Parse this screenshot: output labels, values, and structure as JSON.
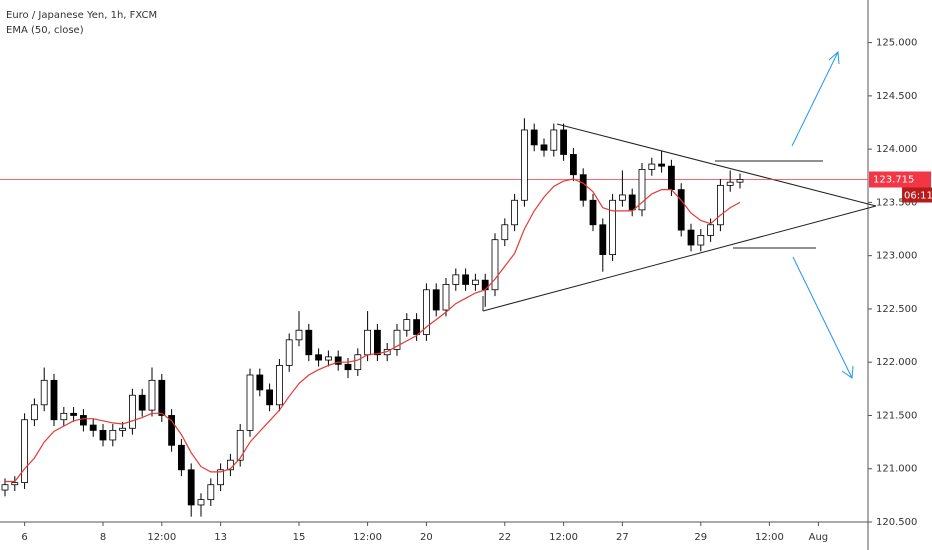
{
  "chart_data": {
    "type": "candlestick",
    "title": "Euro / Japanese Yen, 1h, FXCM",
    "categories": [
      null,
      null,
      "6",
      null,
      null,
      null,
      null,
      null,
      null,
      null,
      "8",
      null,
      null,
      null,
      null,
      null,
      "12:00",
      null,
      null,
      null,
      null,
      null,
      "13",
      null,
      null,
      null,
      null,
      null,
      null,
      null,
      "15",
      null,
      null,
      null,
      null,
      null,
      null,
      "12:00",
      null,
      null,
      null,
      null,
      null,
      "20",
      null,
      null,
      null,
      null,
      null,
      null,
      null,
      "22",
      null,
      null,
      null,
      null,
      null,
      "12:00",
      null,
      null,
      null,
      null,
      null,
      "27",
      null,
      null,
      null,
      null,
      null,
      null,
      null,
      "29",
      null,
      null,
      null,
      null,
      null,
      null,
      "12:00",
      null,
      null,
      null,
      null,
      "Aug"
    ],
    "candles": [
      [
        120.8,
        120.91,
        120.74,
        120.85
      ],
      [
        120.85,
        120.93,
        120.79,
        120.87
      ],
      [
        120.87,
        121.52,
        120.81,
        121.46
      ],
      [
        121.46,
        121.66,
        121.4,
        121.6
      ],
      [
        121.6,
        121.95,
        121.54,
        121.83
      ],
      [
        121.83,
        121.89,
        121.4,
        121.46
      ],
      [
        121.46,
        121.58,
        121.4,
        121.52
      ],
      [
        121.52,
        121.58,
        121.44,
        121.5
      ],
      [
        121.5,
        121.56,
        121.35,
        121.41
      ],
      [
        121.41,
        121.47,
        121.3,
        121.36
      ],
      [
        121.36,
        121.42,
        121.21,
        121.27
      ],
      [
        121.27,
        121.42,
        121.21,
        121.36
      ],
      [
        121.36,
        121.44,
        121.3,
        121.38
      ],
      [
        121.38,
        121.75,
        121.32,
        121.69
      ],
      [
        121.69,
        121.75,
        121.49,
        121.55
      ],
      [
        121.55,
        121.95,
        121.49,
        121.83
      ],
      [
        121.83,
        121.89,
        121.44,
        121.5
      ],
      [
        121.5,
        121.56,
        121.16,
        121.22
      ],
      [
        121.22,
        121.28,
        120.93,
        120.99
      ],
      [
        120.99,
        121.05,
        120.55,
        120.66
      ],
      [
        120.66,
        120.77,
        120.55,
        120.71
      ],
      [
        120.71,
        120.91,
        120.65,
        120.85
      ],
      [
        120.85,
        121.05,
        120.79,
        120.99
      ],
      [
        120.99,
        121.14,
        120.93,
        121.08
      ],
      [
        121.08,
        121.42,
        121.02,
        121.36
      ],
      [
        121.36,
        121.94,
        121.3,
        121.88
      ],
      [
        121.88,
        121.94,
        121.68,
        121.74
      ],
      [
        121.74,
        121.8,
        121.54,
        121.6
      ],
      [
        121.6,
        122.03,
        121.54,
        121.97
      ],
      [
        121.97,
        122.27,
        121.91,
        122.21
      ],
      [
        122.21,
        122.48,
        122.15,
        122.3
      ],
      [
        122.3,
        122.36,
        122.01,
        122.07
      ],
      [
        122.07,
        122.13,
        121.96,
        122.02
      ],
      [
        122.02,
        122.11,
        121.96,
        122.05
      ],
      [
        122.05,
        122.11,
        121.92,
        121.98
      ],
      [
        121.98,
        122.04,
        121.85,
        121.93
      ],
      [
        121.93,
        122.13,
        121.87,
        122.07
      ],
      [
        122.07,
        122.48,
        122.01,
        122.3
      ],
      [
        122.3,
        122.36,
        122.01,
        122.07
      ],
      [
        122.07,
        122.18,
        122.01,
        122.12
      ],
      [
        122.12,
        122.36,
        122.06,
        122.3
      ],
      [
        122.3,
        122.46,
        122.24,
        122.4
      ],
      [
        122.4,
        122.46,
        122.2,
        122.26
      ],
      [
        122.26,
        122.74,
        122.2,
        122.68
      ],
      [
        122.68,
        122.74,
        122.43,
        122.49
      ],
      [
        122.49,
        122.79,
        122.43,
        122.73
      ],
      [
        122.73,
        122.88,
        122.67,
        122.82
      ],
      [
        122.82,
        122.88,
        122.67,
        122.73
      ],
      [
        122.73,
        122.83,
        122.67,
        122.77
      ],
      [
        122.77,
        122.83,
        122.52,
        122.68
      ],
      [
        122.68,
        123.21,
        122.62,
        123.15
      ],
      [
        123.15,
        123.35,
        123.09,
        123.29
      ],
      [
        123.29,
        123.58,
        123.23,
        123.52
      ],
      [
        123.52,
        124.29,
        123.46,
        124.18
      ],
      [
        124.18,
        124.24,
        123.98,
        124.04
      ],
      [
        124.04,
        124.1,
        123.93,
        123.99
      ],
      [
        123.99,
        124.24,
        123.93,
        124.18
      ],
      [
        124.18,
        124.24,
        123.89,
        123.95
      ],
      [
        123.95,
        124.01,
        123.7,
        123.76
      ],
      [
        123.76,
        123.82,
        123.46,
        123.52
      ],
      [
        123.52,
        123.58,
        123.23,
        123.29
      ],
      [
        123.29,
        123.35,
        122.85,
        123.01
      ],
      [
        123.01,
        123.58,
        122.95,
        123.52
      ],
      [
        123.52,
        123.8,
        123.46,
        123.57
      ],
      [
        123.57,
        123.63,
        123.37,
        123.43
      ],
      [
        123.43,
        123.87,
        123.37,
        123.81
      ],
      [
        123.81,
        123.92,
        123.75,
        123.86
      ],
      [
        123.86,
        123.98,
        123.78,
        123.84
      ],
      [
        123.84,
        123.9,
        123.56,
        123.62
      ],
      [
        123.62,
        123.68,
        123.18,
        123.24
      ],
      [
        123.24,
        123.3,
        123.04,
        123.1
      ],
      [
        123.1,
        123.25,
        123.04,
        123.19
      ],
      [
        123.19,
        123.35,
        123.13,
        123.29
      ],
      [
        123.29,
        123.72,
        123.23,
        123.66
      ],
      [
        123.66,
        123.8,
        123.6,
        123.69
      ],
      [
        123.69,
        123.77,
        123.63,
        123.715
      ],
      null,
      null,
      null,
      null,
      null,
      null,
      null,
      null
    ],
    "up_color": "#ffffff",
    "down_color": "#000000",
    "series": [
      {
        "name": "EMA (50, close)",
        "color": "#e53935",
        "values": [
          120.88,
          120.88,
          121.0,
          121.1,
          121.25,
          121.35,
          121.4,
          121.45,
          121.47,
          121.47,
          121.45,
          121.43,
          121.42,
          121.45,
          121.48,
          121.52,
          121.52,
          121.45,
          121.32,
          121.15,
          121.02,
          120.97,
          120.97,
          121.0,
          121.1,
          121.25,
          121.35,
          121.45,
          121.55,
          121.68,
          121.8,
          121.88,
          121.93,
          121.97,
          122.0,
          122.0,
          122.02,
          122.07,
          122.08,
          122.1,
          122.15,
          122.2,
          122.25,
          122.33,
          122.4,
          122.47,
          122.55,
          122.6,
          122.65,
          122.68,
          122.78,
          122.9,
          123.02,
          123.25,
          123.42,
          123.55,
          123.65,
          123.7,
          123.72,
          123.68,
          123.6,
          123.45,
          123.42,
          123.42,
          123.42,
          123.5,
          123.58,
          123.62,
          123.62,
          123.52,
          123.4,
          123.33,
          123.3,
          123.38,
          123.45,
          123.5,
          null,
          null,
          null,
          null,
          null,
          null,
          null,
          null
        ]
      }
    ],
    "ylim": [
      120.5,
      125.4
    ],
    "yticks": [
      {
        "value": 120.5,
        "label": "120.500"
      },
      {
        "value": 121,
        "label": "121.000"
      },
      {
        "value": 121.5,
        "label": "121.500"
      },
      {
        "value": 122,
        "label": "122.000"
      },
      {
        "value": 122.5,
        "label": "122.500"
      },
      {
        "value": 123,
        "label": "123.000"
      },
      {
        "value": 123.5,
        "label": "123.500"
      },
      {
        "value": 124,
        "label": "124.000"
      },
      {
        "value": 124.5,
        "label": "124.500"
      },
      {
        "value": 125,
        "label": "125.000"
      }
    ],
    "last_price": {
      "value": 123.715,
      "label": "123.715"
    },
    "countdown": "06:11",
    "price_line_color": "#f23645"
  }
}
